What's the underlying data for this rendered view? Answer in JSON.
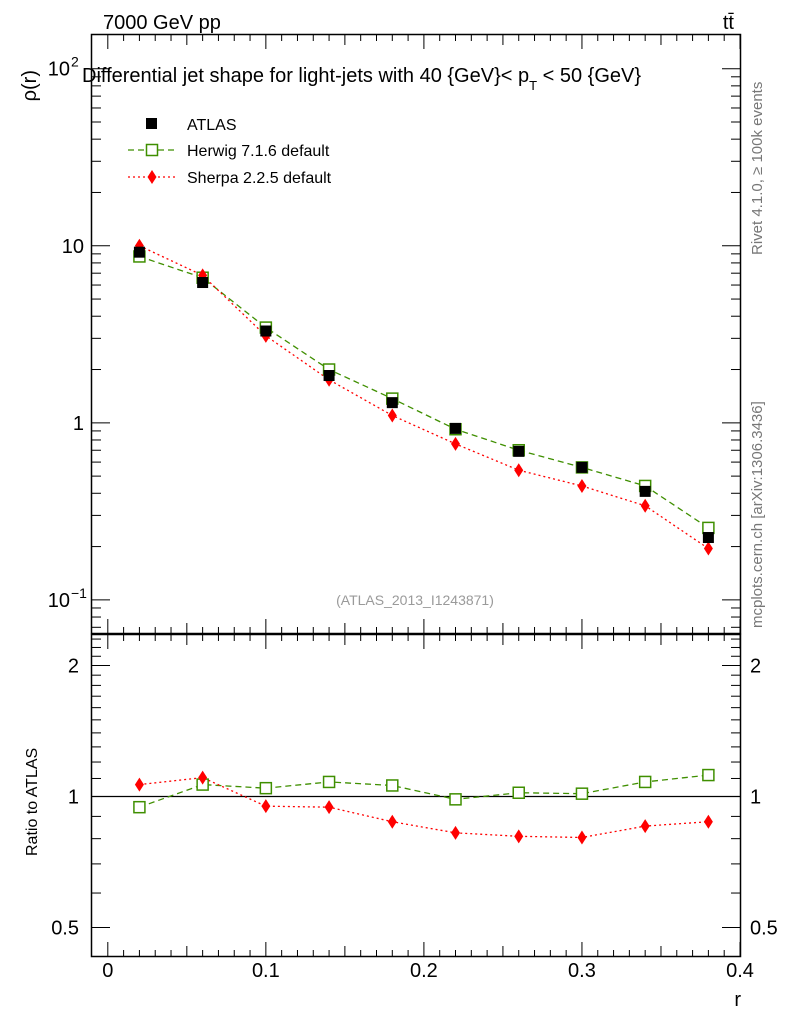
{
  "header": {
    "left": "7000 GeV pp",
    "right": "tt̄"
  },
  "side_labels": {
    "rivet": "Rivet 4.1.0, ≥ 100k events",
    "mcplots": "mcplots.cern.ch [arXiv:1306.3436]"
  },
  "chart_data": [
    {
      "panel": "main",
      "type": "line",
      "title": "Differential jet shape for light-jets with 40 {GeV}< p_T < 50 {GeV}",
      "title_parts": {
        "main": "Differential jet shape for light-jets with 40 {GeV}< p",
        "sub": "T",
        "rest": " < 50 {GeV}"
      },
      "ylabel": "ρ(r)",
      "yscale": "log",
      "ylim": [
        0.065,
        155
      ],
      "xlim": [
        -0.01,
        0.4
      ],
      "y_ticks": [
        {
          "value": 100,
          "base": "10",
          "exp": "2"
        },
        {
          "value": 10,
          "base": "10",
          "exp": ""
        },
        {
          "value": 1,
          "base": "1",
          "exp": ""
        },
        {
          "value": 0.1,
          "base": "10",
          "exp": "−1"
        }
      ],
      "watermark": "(ATLAS_2013_I1243871)",
      "legend": [
        {
          "name": "ATLAS"
        },
        {
          "name": "Herwig 7.1.6 default"
        },
        {
          "name": "Sherpa 2.2.5 default"
        }
      ],
      "x": [
        0.02,
        0.06,
        0.1,
        0.14,
        0.18,
        0.22,
        0.26,
        0.3,
        0.34,
        0.38
      ],
      "series": [
        {
          "name": "ATLAS",
          "color": "#000000",
          "marker": "square-filled",
          "values": [
            9.2,
            6.2,
            3.3,
            1.85,
            1.3,
            0.93,
            0.69,
            0.56,
            0.41,
            0.225
          ]
        },
        {
          "name": "Herwig 7.1.6 default",
          "color": "#3f8f00",
          "marker": "square-open",
          "dash": "6,4",
          "values": [
            8.7,
            6.6,
            3.45,
            2.0,
            1.37,
            0.92,
            0.7,
            0.56,
            0.44,
            0.255
          ]
        },
        {
          "name": "Sherpa 2.2.5 default",
          "color": "#ff0000",
          "marker": "diamond",
          "dash": "2,3",
          "values": [
            10.0,
            6.8,
            3.1,
            1.75,
            1.1,
            0.76,
            0.54,
            0.44,
            0.34,
            0.195
          ]
        }
      ]
    },
    {
      "panel": "ratio",
      "type": "line",
      "ylabel": "Ratio to ATLAS",
      "xlabel": "r",
      "yscale": "log",
      "ylim": [
        0.43,
        2.35
      ],
      "xlim": [
        -0.01,
        0.4
      ],
      "y_ticks": [
        {
          "value": 2,
          "label": "2"
        },
        {
          "value": 1,
          "label": "1"
        },
        {
          "value": 0.5,
          "label": "0.5"
        }
      ],
      "x_ticks": [
        {
          "value": 0,
          "label": "0"
        },
        {
          "value": 0.1,
          "label": "0.1"
        },
        {
          "value": 0.2,
          "label": "0.2"
        },
        {
          "value": 0.3,
          "label": "0.3"
        },
        {
          "value": 0.4,
          "label": "0.4"
        }
      ],
      "x": [
        0.02,
        0.06,
        0.1,
        0.14,
        0.18,
        0.22,
        0.26,
        0.3,
        0.34,
        0.38
      ],
      "series": [
        {
          "name": "Herwig 7.1.6 default",
          "color": "#3f8f00",
          "marker": "square-open",
          "dash": "6,4",
          "values": [
            0.945,
            1.065,
            1.045,
            1.08,
            1.06,
            0.985,
            1.02,
            1.015,
            1.08,
            1.12
          ]
        },
        {
          "name": "Sherpa 2.2.5 default",
          "color": "#ff0000",
          "marker": "diamond",
          "dash": "2,3",
          "values": [
            1.065,
            1.105,
            0.95,
            0.945,
            0.875,
            0.825,
            0.81,
            0.805,
            0.855,
            0.875
          ]
        }
      ]
    }
  ]
}
